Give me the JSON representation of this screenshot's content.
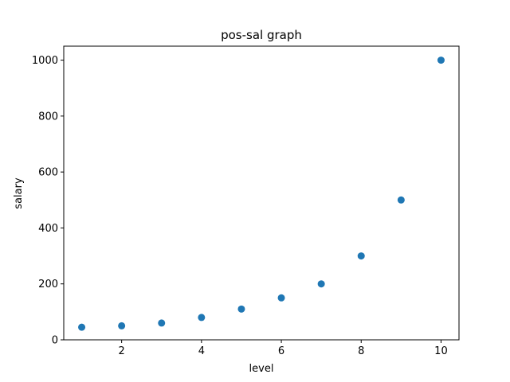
{
  "chart_data": {
    "type": "scatter",
    "title": "pos-sal graph",
    "xlabel": "level",
    "ylabel": "salary",
    "x": [
      1,
      2,
      3,
      4,
      5,
      6,
      7,
      8,
      9,
      10
    ],
    "y": [
      45,
      50,
      60,
      80,
      110,
      150,
      200,
      300,
      500,
      1000
    ],
    "xlim": [
      0.55,
      10.45
    ],
    "ylim": [
      0,
      1050
    ],
    "xticks": [
      2,
      4,
      6,
      8,
      10
    ],
    "yticks": [
      0,
      200,
      400,
      600,
      800,
      1000
    ],
    "xtick_labels": [
      "2",
      "4",
      "6",
      "8",
      "10"
    ],
    "ytick_labels": [
      "0",
      "200",
      "400",
      "600",
      "800",
      "1000"
    ],
    "grid": false,
    "legend": "none",
    "marker_color": "#1f77b4"
  }
}
